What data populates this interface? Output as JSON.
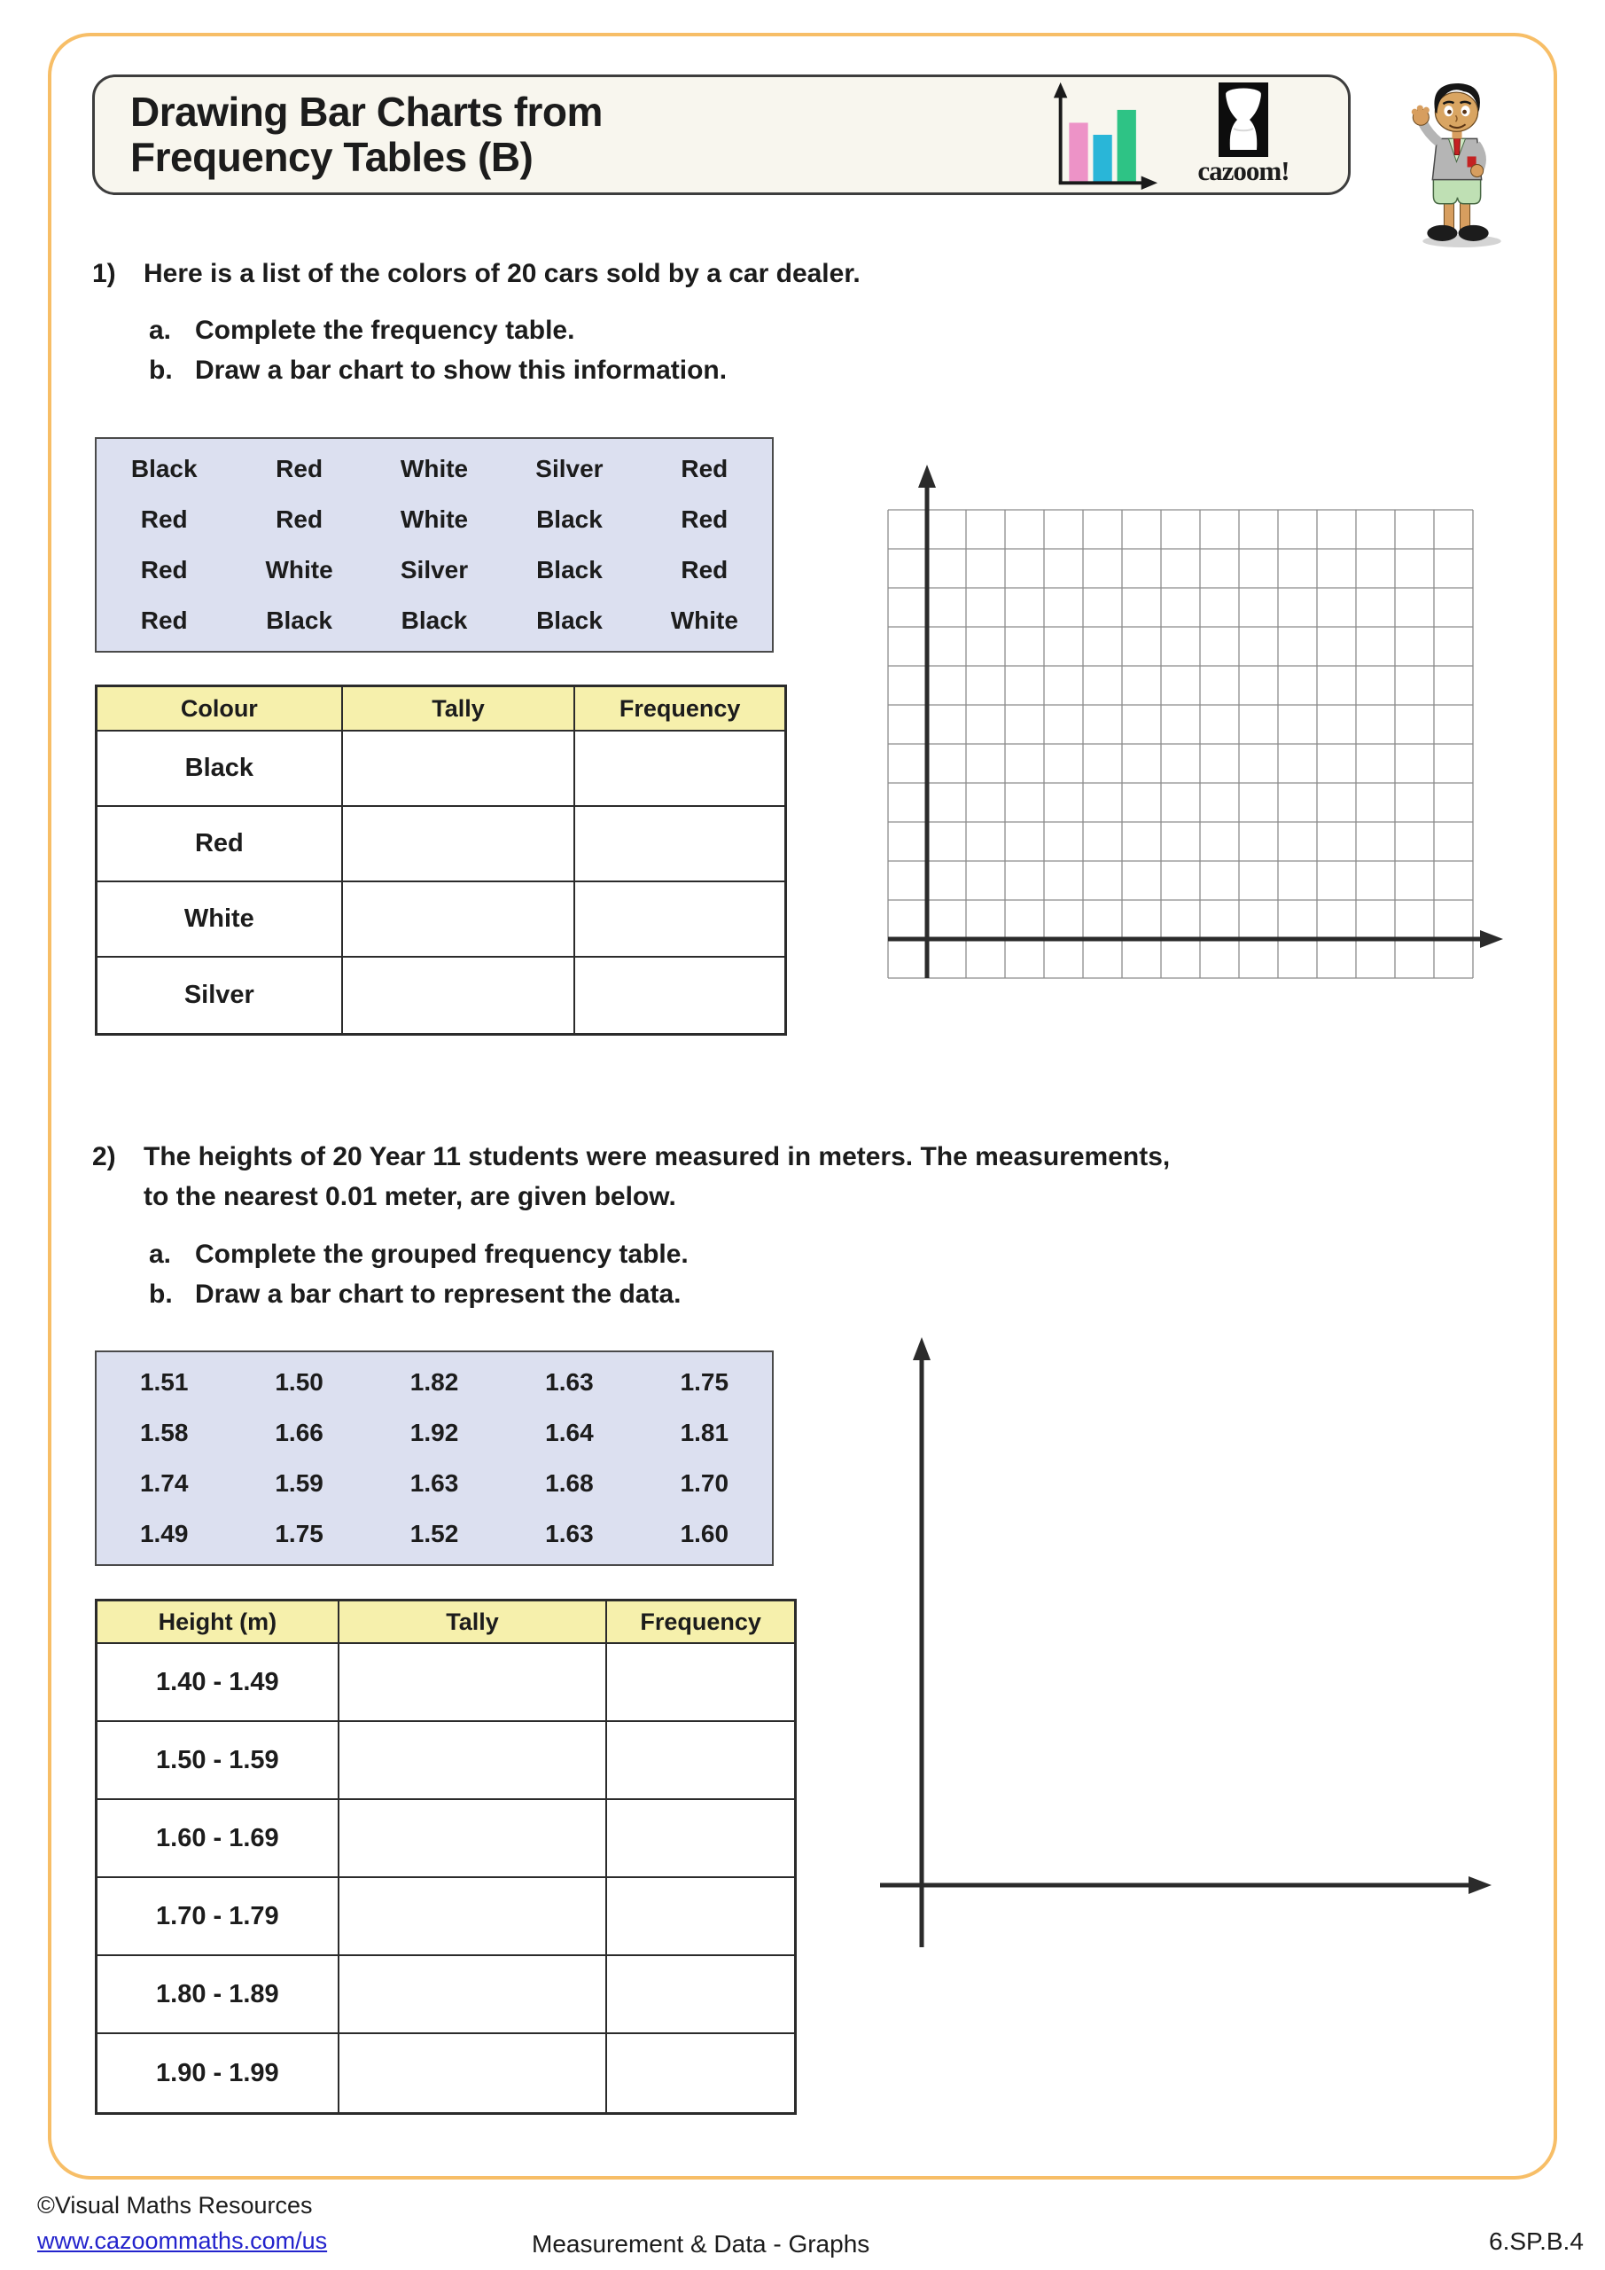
{
  "page": {
    "title_line1": "Drawing Bar Charts from",
    "title_line2": "Frequency Tables (B)",
    "logo_text": "cazoom!"
  },
  "icons": {
    "bar_chart": "bar-chart-icon",
    "drum": "cazoom-drum-icon",
    "mascot": "schoolboy-mascot"
  },
  "colors": {
    "frame_orange": "#F7BE67",
    "header_cream": "#F8F6EE",
    "table_header_yellow": "#F6F0AC",
    "data_box_lavender": "#DCE0F0",
    "link_blue": "#2323CC",
    "icon_bar_pink": "#ED93C7",
    "icon_bar_cyan": "#29B6D8",
    "icon_bar_green": "#2EC385"
  },
  "q1": {
    "number": "1)",
    "prompt": "Here is a list of the colors of 20 cars sold by a car dealer.",
    "parts": [
      {
        "label": "a.",
        "text": "Complete the frequency table."
      },
      {
        "label": "b.",
        "text": "Draw a bar chart to show this information."
      }
    ],
    "data": [
      [
        "Black",
        "Red",
        "White",
        "Silver",
        "Red"
      ],
      [
        "Red",
        "Red",
        "White",
        "Black",
        "Red"
      ],
      [
        "Red",
        "White",
        "Silver",
        "Black",
        "Red"
      ],
      [
        "Red",
        "Black",
        "Black",
        "Black",
        "White"
      ]
    ],
    "table": {
      "headers": [
        "Colour",
        "Tally",
        "Frequency"
      ],
      "categories": [
        "Black",
        "Red",
        "White",
        "Silver"
      ]
    }
  },
  "q2": {
    "number": "2)",
    "prompt_line1": "The heights of 20 Year 11 students were measured in meters. The measurements,",
    "prompt_line2": "to the nearest 0.01 meter, are given below.",
    "parts": [
      {
        "label": "a.",
        "text": "Complete the grouped frequency table."
      },
      {
        "label": "b.",
        "text": "Draw a bar chart to represent the data."
      }
    ],
    "data": [
      [
        "1.51",
        "1.50",
        "1.82",
        "1.63",
        "1.75"
      ],
      [
        "1.58",
        "1.66",
        "1.92",
        "1.64",
        "1.81"
      ],
      [
        "1.74",
        "1.59",
        "1.63",
        "1.68",
        "1.70"
      ],
      [
        "1.49",
        "1.75",
        "1.52",
        "1.63",
        "1.60"
      ]
    ],
    "table": {
      "headers": [
        "Height (m)",
        "Tally",
        "Frequency"
      ],
      "categories": [
        "1.40 - 1.49",
        "1.50 - 1.59",
        "1.60 - 1.69",
        "1.70 - 1.79",
        "1.80 - 1.89",
        "1.90 - 1.99"
      ]
    }
  },
  "footer": {
    "copyright": "©Visual Maths Resources",
    "url": "www.cazoommaths.com/us",
    "center": "Measurement & Data - Graphs",
    "standard_code": "6.SP.B.4"
  }
}
